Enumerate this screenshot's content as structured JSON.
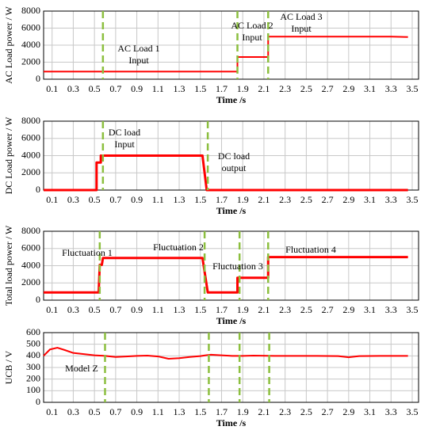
{
  "chart_data": [
    {
      "type": "line",
      "y_label": "AC Load power / W",
      "x_label": "Time /s",
      "xlim": [
        0.02,
        3.56
      ],
      "ylim": [
        0,
        8000
      ],
      "xticks": [
        0.1,
        0.3,
        0.5,
        0.7,
        0.9,
        1.1,
        1.3,
        1.5,
        1.7,
        1.9,
        2.1,
        2.3,
        2.5,
        2.7,
        2.9,
        3.1,
        3.3,
        3.5
      ],
      "yticks": [
        0,
        2000,
        4000,
        6000,
        8000
      ],
      "grid": true,
      "color": "#ff0000",
      "x": [
        0.02,
        1.85,
        1.85,
        2.14,
        2.14,
        3.3,
        3.46
      ],
      "values": [
        900,
        900,
        2600,
        2600,
        5000,
        5000,
        4950
      ],
      "vlines": [
        0.58,
        1.85,
        2.14
      ],
      "vline_color": "#8cbf3f",
      "annotations": [
        [
          "AC Load 1",
          "Input"
        ],
        [
          "AC Load 2",
          "Input"
        ],
        [
          "AC Load 3",
          "Input"
        ]
      ]
    },
    {
      "type": "line",
      "y_label": "DC Load power / W",
      "x_label": "Time /s",
      "xlim": [
        0.02,
        3.56
      ],
      "ylim": [
        0,
        8000
      ],
      "xticks": [
        0.1,
        0.3,
        0.5,
        0.7,
        0.9,
        1.1,
        1.3,
        1.5,
        1.7,
        1.9,
        2.1,
        2.3,
        2.5,
        2.7,
        2.9,
        3.1,
        3.3,
        3.5
      ],
      "yticks": [
        0,
        2000,
        4000,
        6000,
        8000
      ],
      "grid": true,
      "color": "#ff0000",
      "x": [
        0.02,
        0.52,
        0.52,
        0.56,
        0.56,
        1.52,
        1.56,
        3.46
      ],
      "values": [
        0,
        0,
        3200,
        3200,
        4000,
        4000,
        0,
        0
      ],
      "vlines": [
        0.58,
        1.57
      ],
      "vline_color": "#8cbf3f",
      "annotations": [
        [
          "DC load",
          "Input"
        ],
        [
          "DC load",
          "output"
        ]
      ]
    },
    {
      "type": "line",
      "y_label": "Total load power / W",
      "x_label": "Time /s",
      "xlim": [
        0.02,
        3.56
      ],
      "ylim": [
        0,
        8000
      ],
      "xticks": [
        0.1,
        0.3,
        0.5,
        0.7,
        0.9,
        1.1,
        1.3,
        1.5,
        1.7,
        1.9,
        2.1,
        2.3,
        2.5,
        2.7,
        2.9,
        3.1,
        3.3,
        3.5
      ],
      "yticks": [
        0,
        2000,
        4000,
        6000,
        8000
      ],
      "grid": true,
      "color": "#ff0000",
      "x": [
        0.02,
        0.54,
        0.55,
        0.57,
        0.58,
        1.52,
        1.57,
        1.85,
        1.85,
        2.14,
        2.14,
        3.46
      ],
      "values": [
        900,
        900,
        4100,
        4100,
        4900,
        4900,
        900,
        900,
        2600,
        2600,
        5000,
        5000
      ],
      "vlines": [
        0.55,
        1.54,
        1.87,
        2.14
      ],
      "vline_color": "#8cbf3f",
      "annotations": [
        [
          "Fluctuation 1"
        ],
        [
          "Fluctuation 2"
        ],
        [
          "Fluctuation 3"
        ],
        [
          "Fluctuation 4"
        ]
      ]
    },
    {
      "type": "line",
      "y_label": "UCB / V",
      "x_label": "Time /s",
      "xlim": [
        0.02,
        3.56
      ],
      "ylim": [
        0,
        600
      ],
      "xticks": [
        0.1,
        0.3,
        0.5,
        0.7,
        0.9,
        1.1,
        1.3,
        1.5,
        1.7,
        1.9,
        2.1,
        2.3,
        2.5,
        2.7,
        2.9,
        3.1,
        3.3,
        3.5
      ],
      "yticks": [
        0,
        100,
        200,
        300,
        400,
        500,
        600
      ],
      "grid": true,
      "color": "#ff0000",
      "x": [
        0.02,
        0.08,
        0.15,
        0.22,
        0.3,
        0.4,
        0.5,
        0.6,
        0.7,
        0.8,
        0.9,
        1.0,
        1.1,
        1.15,
        1.2,
        1.3,
        1.4,
        1.5,
        1.55,
        1.6,
        1.7,
        1.8,
        1.9,
        2.0,
        2.2,
        2.4,
        2.6,
        2.8,
        2.9,
        3.0,
        3.2,
        3.46
      ],
      "values": [
        400,
        455,
        470,
        450,
        425,
        415,
        405,
        400,
        390,
        395,
        400,
        402,
        395,
        385,
        375,
        380,
        390,
        398,
        405,
        410,
        405,
        400,
        400,
        402,
        400,
        400,
        400,
        398,
        388,
        398,
        400,
        400
      ],
      "vlines": [
        0.6,
        1.58,
        1.87,
        2.15
      ],
      "vline_color": "#8cbf3f",
      "annotations": [
        [
          "Model Z"
        ]
      ]
    }
  ]
}
